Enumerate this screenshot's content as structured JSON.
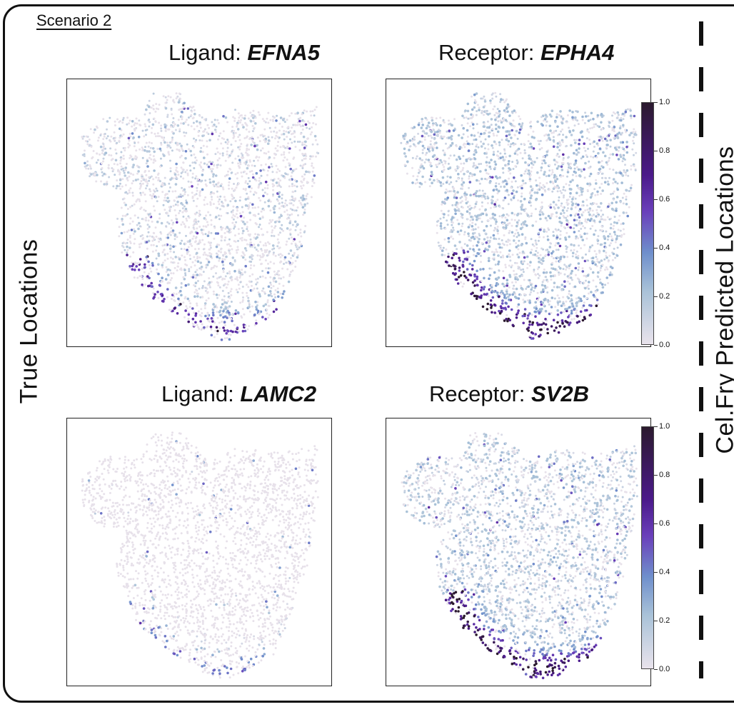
{
  "scenario_label": "Scenario 2",
  "left_side_label": "True Locations",
  "right_side_label": "Cel.Fry Predicted Locations",
  "colormap": {
    "colors": [
      "#e9e3ec",
      "#a9c2d8",
      "#6f8fcc",
      "#6a3fba",
      "#4b1a8a",
      "#2b1a2e"
    ],
    "tick_labels": [
      "1.0",
      "0.8",
      "0.6",
      "0.4",
      "0.2",
      "0.0"
    ]
  },
  "panels": [
    {
      "role": "Ligand: ",
      "gene": "EFNA5"
    },
    {
      "role": "Receptor: ",
      "gene": "EPHA4"
    },
    {
      "role": "Ligand: ",
      "gene": "LAMC2"
    },
    {
      "role": "Receptor: ",
      "gene": "SV2B"
    }
  ]
}
